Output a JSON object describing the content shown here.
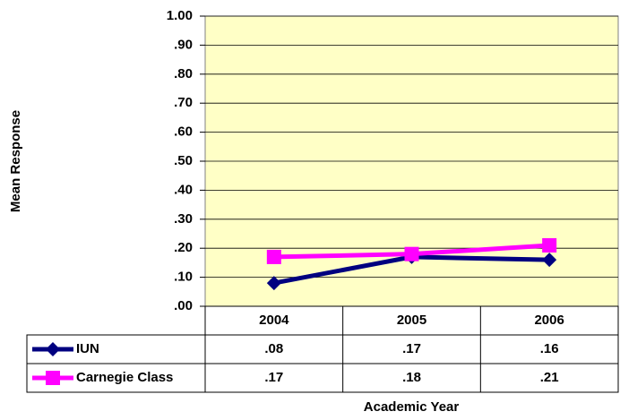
{
  "chart_data": {
    "type": "line",
    "x_label": "Academic Year",
    "y_label": "Mean Response",
    "categories": [
      "2004",
      "2005",
      "2006"
    ],
    "series": [
      {
        "name": "IUN",
        "color": "#000080",
        "marker": "diamond",
        "values": [
          0.08,
          0.17,
          0.16
        ],
        "value_labels": [
          ".08",
          ".17",
          ".16"
        ]
      },
      {
        "name": "Carnegie Class",
        "color": "#ff00ff",
        "marker": "square",
        "values": [
          0.17,
          0.18,
          0.21
        ],
        "value_labels": [
          ".17",
          ".18",
          ".21"
        ]
      }
    ],
    "ylim": [
      0,
      1
    ],
    "yticks": [
      {
        "value": 0,
        "label": ".00"
      },
      {
        "value": 0.1,
        "label": ".10"
      },
      {
        "value": 0.2,
        "label": ".20"
      },
      {
        "value": 0.3,
        "label": ".30"
      },
      {
        "value": 0.4,
        "label": ".40"
      },
      {
        "value": 0.5,
        "label": ".50"
      },
      {
        "value": 0.6,
        "label": ".60"
      },
      {
        "value": 0.7,
        "label": ".70"
      },
      {
        "value": 0.8,
        "label": ".80"
      },
      {
        "value": 0.9,
        "label": ".90"
      },
      {
        "value": 1,
        "label": "1.00"
      }
    ],
    "grid": true,
    "plot_background": "#ffffc6"
  }
}
